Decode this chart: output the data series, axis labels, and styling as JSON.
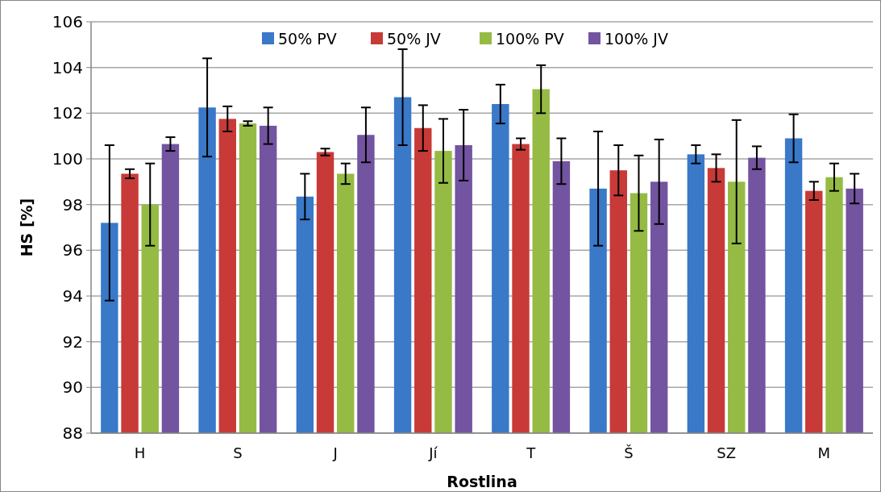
{
  "chart_data": {
    "type": "bar",
    "xlabel": "Rostlina",
    "ylabel": "HS [%]",
    "categories": [
      "H",
      "S",
      "J",
      "Jí",
      "T",
      "Š",
      "SZ",
      "M"
    ],
    "series": [
      {
        "name": "50% PV",
        "color": "#3a78c8",
        "values": [
          97.2,
          102.25,
          98.35,
          102.7,
          102.4,
          98.7,
          100.2,
          100.9
        ],
        "errors": [
          3.4,
          2.15,
          1.0,
          2.1,
          0.85,
          2.5,
          0.4,
          1.05
        ]
      },
      {
        "name": "50% JV",
        "color": "#c83a37",
        "values": [
          99.35,
          101.75,
          100.3,
          101.35,
          100.65,
          99.5,
          99.6,
          98.6
        ],
        "errors": [
          0.2,
          0.55,
          0.15,
          1.0,
          0.25,
          1.1,
          0.6,
          0.4
        ]
      },
      {
        "name": "100% PV",
        "color": "#95bb45",
        "values": [
          98.0,
          101.55,
          99.35,
          100.35,
          103.05,
          98.5,
          99.0,
          99.2
        ],
        "errors": [
          1.8,
          0.1,
          0.45,
          1.4,
          1.05,
          1.65,
          2.7,
          0.6
        ]
      },
      {
        "name": "100% JV",
        "color": "#7354a0",
        "values": [
          100.65,
          101.45,
          101.05,
          100.6,
          99.9,
          99.0,
          100.05,
          98.7
        ],
        "errors": [
          0.3,
          0.8,
          1.2,
          1.55,
          1.0,
          1.85,
          0.5,
          0.65
        ]
      }
    ],
    "ylim": [
      88,
      106
    ],
    "yticks": [
      88,
      90,
      92,
      94,
      96,
      98,
      100,
      102,
      104,
      106
    ],
    "grid": "y",
    "legend": "top"
  }
}
